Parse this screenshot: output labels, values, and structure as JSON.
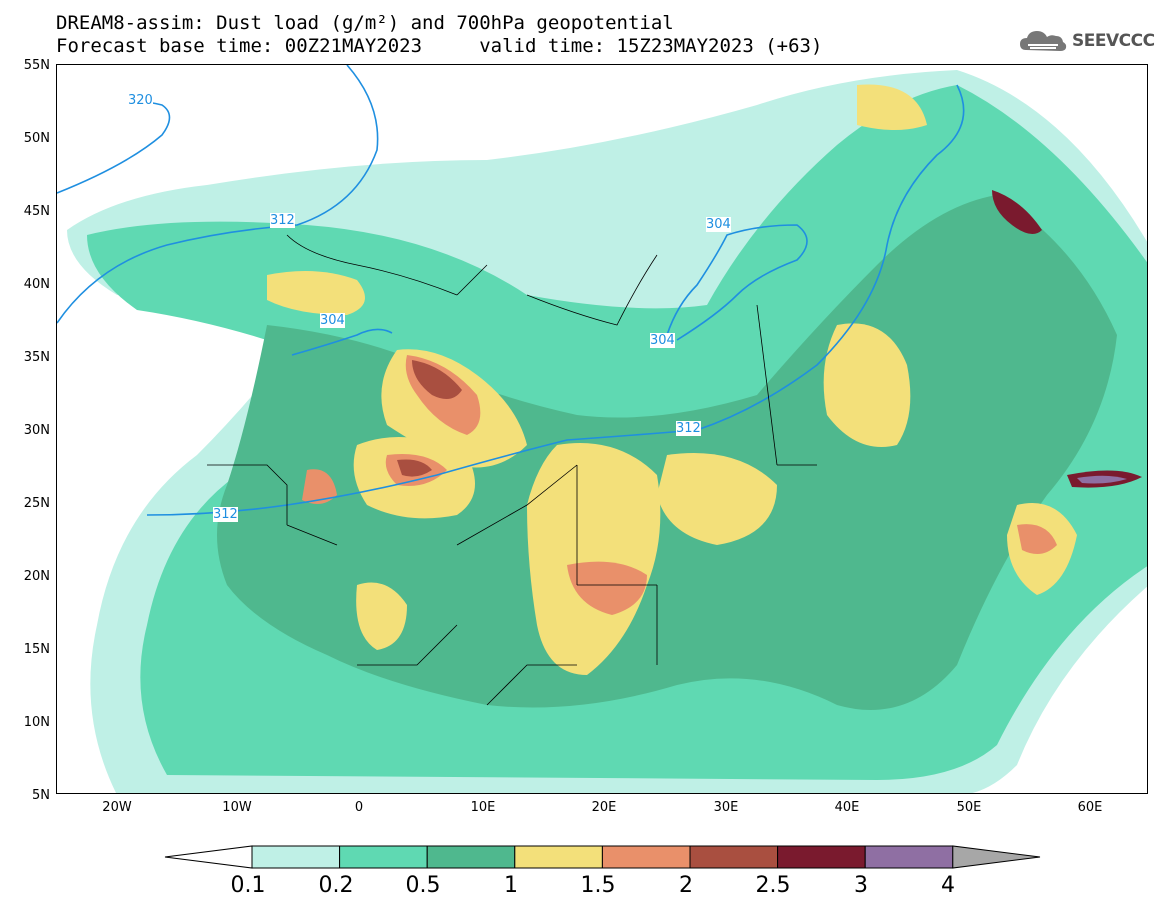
{
  "header": {
    "title_line1": "DREAM8-assim: Dust load (g/m²) and 700hPa geopotential",
    "title_line2": "Forecast base time: 00Z21MAY2023     valid time: 15Z23MAY2023 (+63)"
  },
  "logo": {
    "text": "SEEVCCC",
    "icon": "cloud-icon"
  },
  "map": {
    "lat_labels": [
      "55N",
      "50N",
      "45N",
      "40N",
      "35N",
      "30N",
      "25N",
      "20N",
      "15N",
      "10N",
      "5N"
    ],
    "lon_labels": [
      "20W",
      "10W",
      "0",
      "10E",
      "20E",
      "30E",
      "40E",
      "50E",
      "60E"
    ],
    "contour_labels": [
      "320",
      "312",
      "304",
      "304",
      "304",
      "312",
      "312"
    ],
    "colors": {
      "lt0_2": "#bff0e6",
      "lt0_5": "#5fd9b2",
      "lt1": "#4fb88e",
      "lt1_5": "#f3e07a",
      "lt2": "#e9906a",
      "lt2_5": "#a94f40",
      "lt3": "#7a1a2e",
      "lt4": "#8f6fa3",
      "contour": "#1f8fe0"
    }
  },
  "colorbar": {
    "labels": [
      "0.1",
      "0.2",
      "0.5",
      "1",
      "1.5",
      "2",
      "2.5",
      "3",
      "4"
    ],
    "colors": [
      "#bff0e6",
      "#5fd9b2",
      "#4fb88e",
      "#f3e07a",
      "#e9906a",
      "#a94f40",
      "#7a1a2e",
      "#8f6fa3"
    ],
    "low_end": "#ffffff",
    "high_end": "#a7a7a7"
  }
}
